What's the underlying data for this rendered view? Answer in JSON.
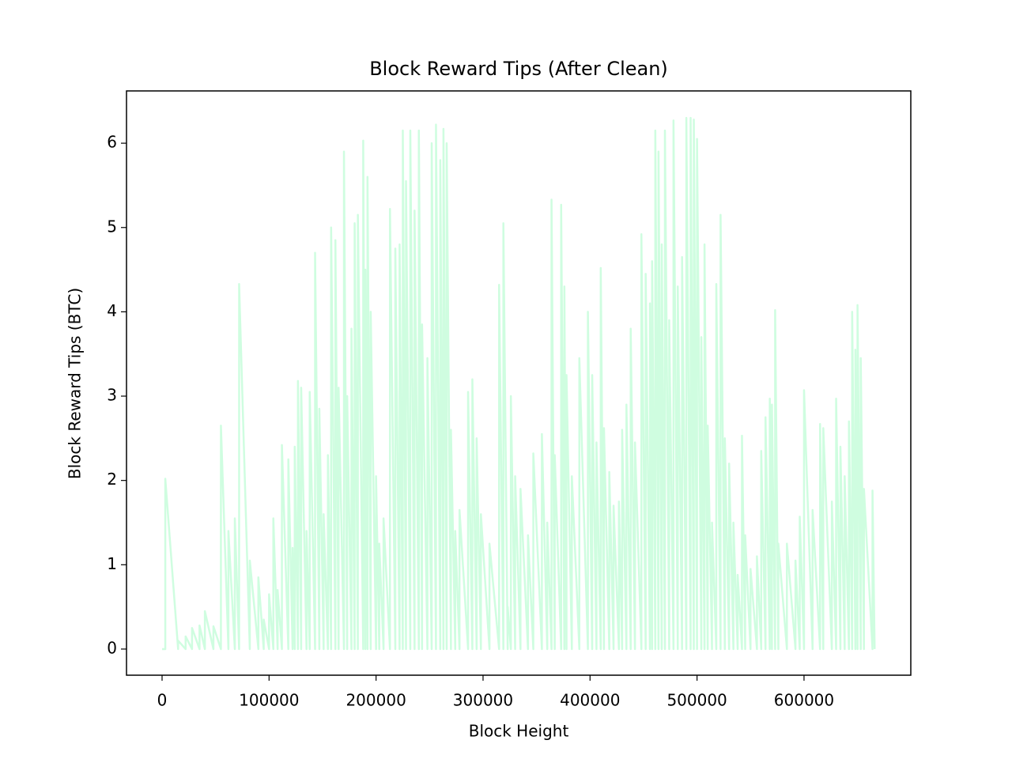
{
  "chart_data": {
    "type": "line",
    "title": "Block Reward Tips (After Clean)",
    "x_label": "Block Height",
    "y_label": "Block Reward Tips (BTC)",
    "xlim": [
      -33250,
      699800
    ],
    "ylim": [
      -0.31,
      6.62
    ],
    "xticks": [
      0,
      100000,
      200000,
      300000,
      400000,
      500000,
      600000
    ],
    "yticks": [
      0,
      1,
      2,
      3,
      4,
      5,
      6
    ],
    "x": [
      0,
      3000,
      3000,
      15000,
      15000,
      22000,
      22000,
      28000,
      28000,
      35000,
      35000,
      40000,
      40000,
      48000,
      48000,
      55000,
      55000,
      62000,
      62000,
      68000,
      68000,
      72000,
      72000,
      82000,
      82000,
      90000,
      90000,
      95000,
      95000,
      100000,
      100000,
      104000,
      104000,
      108000,
      108000,
      112000,
      112000,
      118000,
      118000,
      122000,
      122000,
      124000,
      124000,
      127000,
      127000,
      130000,
      130000,
      135000,
      135000,
      138000,
      138000,
      143000,
      143000,
      147000,
      147000,
      151000,
      151000,
      155000,
      155000,
      158000,
      158000,
      162000,
      162000,
      165000,
      165000,
      170000,
      170000,
      173000,
      173000,
      177000,
      177000,
      180000,
      180000,
      183000,
      183000,
      188000,
      188000,
      190000,
      190000,
      192000,
      192000,
      195000,
      195000,
      200000,
      200000,
      203000,
      203000,
      207000,
      207000,
      213000,
      213000,
      218000,
      218000,
      222000,
      222000,
      225000,
      225000,
      228000,
      228000,
      232000,
      232000,
      236000,
      236000,
      240000,
      240000,
      243000,
      243000,
      248000,
      248000,
      252000,
      252000,
      256000,
      256000,
      260000,
      260000,
      263000,
      263000,
      266000,
      266000,
      270000,
      270000,
      274000,
      274000,
      278000,
      278000,
      286000,
      286000,
      290000,
      290000,
      294000,
      294000,
      298000,
      298000,
      306000,
      306000,
      315000,
      315000,
      319000,
      319000,
      323000,
      323000,
      326000,
      326000,
      330000,
      330000,
      335000,
      335000,
      342000,
      342000,
      347000,
      347000,
      355000,
      355000,
      360000,
      360000,
      364000,
      364000,
      367000,
      367000,
      373000,
      373000,
      376000,
      376000,
      378000,
      378000,
      383000,
      383000,
      390000,
      390000,
      398000,
      398000,
      402000,
      402000,
      406000,
      406000,
      410000,
      410000,
      413000,
      413000,
      418000,
      418000,
      422000,
      422000,
      427000,
      427000,
      430000,
      430000,
      434000,
      434000,
      438000,
      438000,
      442000,
      442000,
      448000,
      448000,
      452000,
      452000,
      456000,
      456000,
      458000,
      458000,
      461000,
      461000,
      464000,
      464000,
      467000,
      467000,
      470000,
      470000,
      474000,
      474000,
      478000,
      478000,
      482000,
      482000,
      486000,
      486000,
      490000,
      490000,
      494000,
      494000,
      497000,
      497000,
      500000,
      500000,
      504000,
      504000,
      507000,
      507000,
      510000,
      510000,
      514000,
      514000,
      518000,
      518000,
      522000,
      522000,
      526000,
      526000,
      530000,
      530000,
      534000,
      534000,
      538000,
      538000,
      542000,
      542000,
      545000,
      545000,
      550000,
      550000,
      556000,
      556000,
      560000,
      560000,
      564000,
      564000,
      568000,
      568000,
      570000,
      570000,
      573000,
      573000,
      576000,
      576000,
      584000,
      584000,
      592000,
      592000,
      596000,
      596000,
      600000,
      600000,
      608000,
      608000,
      615000,
      615000,
      618000,
      618000,
      626000,
      626000,
      630000,
      630000,
      634000,
      634000,
      638000,
      638000,
      642000,
      642000,
      645000,
      645000,
      648000,
      648000,
      650000,
      650000,
      653000,
      653000,
      656000,
      656000,
      664000,
      664000,
      666000
    ],
    "series": [
      {
        "color": "#cffde0",
        "values": [
          0,
          0,
          2.02,
          0,
          0.1,
          0,
          0.15,
          0,
          0.25,
          0,
          0.28,
          0,
          0.45,
          0,
          0.27,
          0,
          2.65,
          0,
          1.4,
          0,
          1.55,
          0,
          4.33,
          0,
          1.05,
          0,
          0.85,
          0,
          0.35,
          0,
          0.65,
          0,
          1.55,
          0,
          0.7,
          0,
          2.42,
          0,
          2.25,
          0,
          1.2,
          0,
          2.4,
          0,
          3.18,
          0,
          3.1,
          0,
          1.4,
          0,
          3.05,
          0,
          4.7,
          0,
          2.85,
          0,
          1.6,
          0,
          2.3,
          0,
          5.0,
          0,
          4.85,
          0,
          3.1,
          0,
          5.9,
          0,
          3.0,
          0,
          3.8,
          0,
          5.05,
          0,
          5.15,
          0,
          6.03,
          0,
          4.5,
          0,
          5.6,
          0,
          4.0,
          0,
          2.05,
          0,
          1.25,
          0,
          1.55,
          0,
          5.22,
          0,
          4.75,
          0,
          4.8,
          0,
          6.15,
          0,
          5.55,
          0,
          6.15,
          0,
          5.2,
          0,
          6.15,
          0,
          3.85,
          0,
          3.45,
          0,
          6.0,
          0,
          6.22,
          0,
          5.8,
          0,
          6.17,
          0,
          6.0,
          0,
          2.6,
          0,
          1.4,
          0,
          1.65,
          0,
          3.05,
          0,
          3.2,
          0,
          2.5,
          0,
          1.6,
          0,
          1.25,
          0,
          4.32,
          0,
          5.05,
          0,
          0.5,
          0,
          3.0,
          0,
          2.05,
          0,
          1.9,
          0,
          1.35,
          0,
          2.32,
          0,
          2.55,
          0,
          1.5,
          0,
          5.33,
          0,
          2.3,
          0,
          5.27,
          0,
          4.3,
          0,
          3.25,
          0,
          2.05,
          0,
          3.45,
          0,
          4.0,
          0,
          3.25,
          0,
          2.45,
          0,
          4.52,
          0,
          2.62,
          0,
          2.1,
          0,
          1.7,
          0,
          1.75,
          0,
          2.6,
          0,
          2.9,
          0,
          3.8,
          0,
          2.45,
          0,
          4.92,
          0,
          4.45,
          0,
          4.1,
          0,
          4.6,
          0,
          6.15,
          0,
          5.9,
          0,
          4.8,
          0,
          6.15,
          0,
          3.9,
          0,
          6.27,
          0,
          4.3,
          0,
          4.65,
          0,
          6.3,
          0,
          6.3,
          0,
          6.28,
          0,
          6.05,
          0,
          3.7,
          0,
          4.8,
          0,
          2.65,
          0,
          1.5,
          0,
          4.33,
          0,
          5.15,
          0,
          2.5,
          0,
          2.2,
          0,
          1.5,
          0,
          0.88,
          0,
          2.53,
          0,
          1.35,
          0,
          0.95,
          0,
          1.1,
          0,
          2.35,
          0,
          2.75,
          0,
          2.97,
          0,
          2.9,
          0,
          4.02,
          0,
          1.25,
          0,
          1.25,
          0,
          1.05,
          0,
          1.57,
          0,
          3.07,
          0,
          1.65,
          0,
          2.67,
          0,
          2.62,
          0,
          1.75,
          0,
          2.97,
          0,
          2.4,
          0,
          2.05,
          0,
          2.7,
          0,
          4.0,
          0,
          3.55,
          0,
          4.08,
          0,
          3.45,
          0,
          1.9,
          0,
          1.88,
          0
        ]
      }
    ]
  }
}
